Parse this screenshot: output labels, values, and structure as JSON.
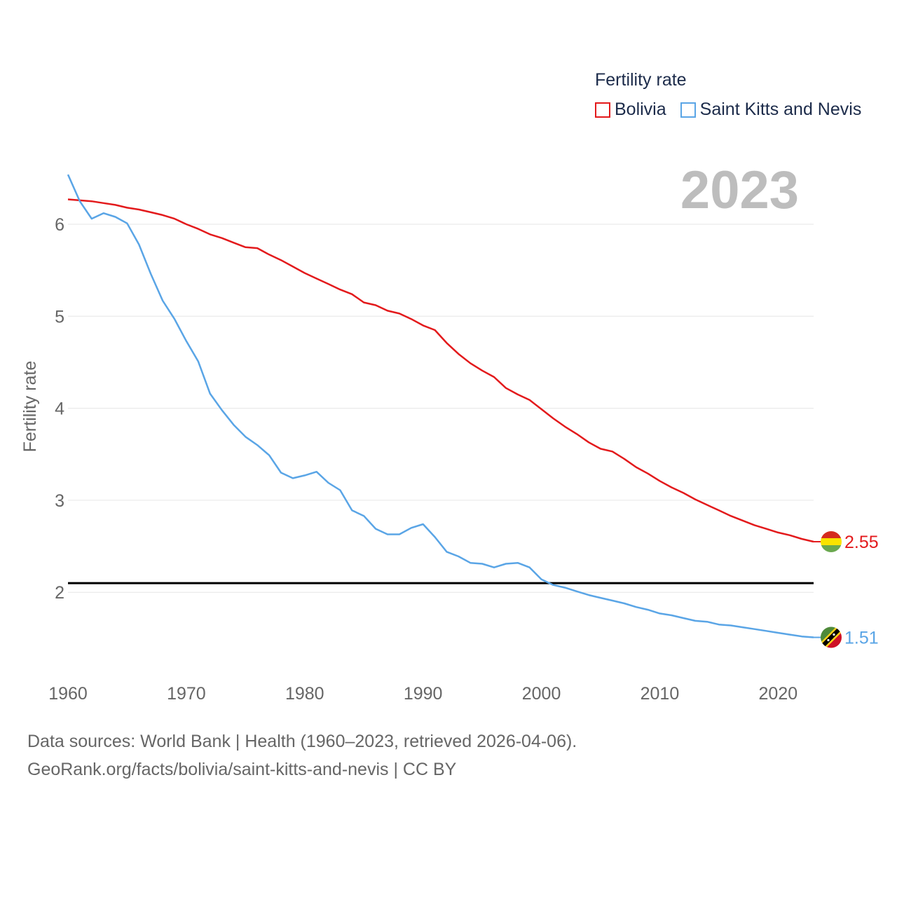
{
  "legend": {
    "title": "Fertility rate",
    "items": [
      {
        "label": "Bolivia",
        "color": "#e31a1c"
      },
      {
        "label": "Saint Kitts and Nevis",
        "color": "#5aa5e6"
      }
    ]
  },
  "year_label": "2023",
  "footer": {
    "line1": "Data sources: World Bank | Health (1960–2023, retrieved 2026-04-06).",
    "line2": "GeoRank.org/facts/bolivia/saint-kitts-and-nevis | CC BY"
  },
  "chart_data": {
    "type": "line",
    "title": "",
    "xlabel": "",
    "ylabel": "Fertility rate",
    "xlim": [
      1960,
      2023
    ],
    "ylim": [
      1.1,
      6.6
    ],
    "xticks": [
      1960,
      1970,
      1980,
      1990,
      2000,
      2010,
      2020
    ],
    "yticks": [
      2,
      3,
      4,
      5,
      6
    ],
    "grid": true,
    "reference_line": {
      "y": 2.1,
      "color": "#000000"
    },
    "x": [
      1960,
      1961,
      1962,
      1963,
      1964,
      1965,
      1966,
      1967,
      1968,
      1969,
      1970,
      1971,
      1972,
      1973,
      1974,
      1975,
      1976,
      1977,
      1978,
      1979,
      1980,
      1981,
      1982,
      1983,
      1984,
      1985,
      1986,
      1987,
      1988,
      1989,
      1990,
      1991,
      1992,
      1993,
      1994,
      1995,
      1996,
      1997,
      1998,
      1999,
      2000,
      2001,
      2002,
      2003,
      2004,
      2005,
      2006,
      2007,
      2008,
      2009,
      2010,
      2011,
      2012,
      2013,
      2014,
      2015,
      2016,
      2017,
      2018,
      2019,
      2020,
      2021,
      2022,
      2023
    ],
    "series": [
      {
        "name": "Bolivia",
        "color": "#e31a1c",
        "end_label": "2.55",
        "values": [
          6.27,
          6.26,
          6.25,
          6.23,
          6.21,
          6.18,
          6.16,
          6.13,
          6.1,
          6.06,
          6.0,
          5.95,
          5.89,
          5.85,
          5.8,
          5.75,
          5.74,
          5.67,
          5.61,
          5.54,
          5.47,
          5.41,
          5.35,
          5.29,
          5.24,
          5.15,
          5.12,
          5.06,
          5.03,
          4.97,
          4.9,
          4.85,
          4.71,
          4.59,
          4.49,
          4.41,
          4.34,
          4.22,
          4.15,
          4.09,
          3.99,
          3.89,
          3.8,
          3.72,
          3.63,
          3.56,
          3.53,
          3.45,
          3.36,
          3.29,
          3.21,
          3.14,
          3.08,
          3.01,
          2.95,
          2.89,
          2.83,
          2.78,
          2.73,
          2.69,
          2.65,
          2.62,
          2.58,
          2.55
        ]
      },
      {
        "name": "Saint Kitts and Nevis",
        "color": "#5aa5e6",
        "end_label": "1.51",
        "values": [
          6.54,
          6.25,
          6.06,
          6.12,
          6.08,
          6.01,
          5.78,
          5.46,
          5.17,
          4.97,
          4.73,
          4.51,
          4.16,
          3.98,
          3.82,
          3.69,
          3.6,
          3.49,
          3.3,
          3.24,
          3.27,
          3.31,
          3.19,
          3.11,
          2.89,
          2.83,
          2.69,
          2.63,
          2.63,
          2.7,
          2.74,
          2.6,
          2.44,
          2.39,
          2.32,
          2.31,
          2.27,
          2.31,
          2.32,
          2.27,
          2.14,
          2.08,
          2.05,
          2.01,
          1.97,
          1.94,
          1.91,
          1.88,
          1.84,
          1.81,
          1.77,
          1.75,
          1.72,
          1.69,
          1.68,
          1.65,
          1.64,
          1.62,
          1.6,
          1.58,
          1.56,
          1.54,
          1.52,
          1.51
        ]
      }
    ]
  }
}
